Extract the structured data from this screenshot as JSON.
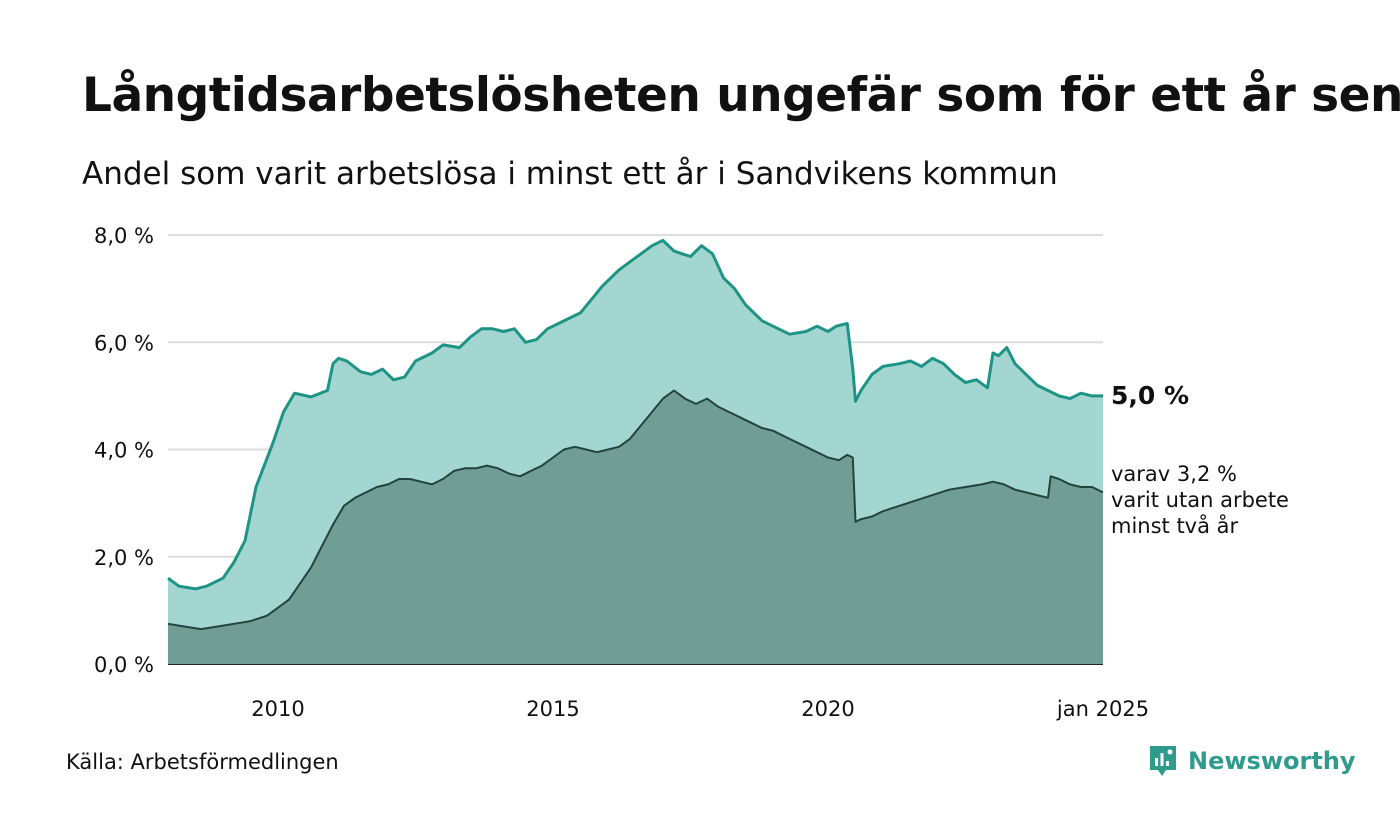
{
  "title": "Långtidsarbetslösheten ungefär som för ett år sen",
  "subtitle": "Andel som varit arbetslösa i minst ett år i Sandvikens kommun",
  "source": "Källa: Arbetsförmedlingen",
  "brand": "Newsworthy",
  "colors": {
    "series1_fill": "#a3d6d0",
    "series1_line": "#1d9485",
    "series2_fill": "#709e95",
    "series2_line": "#24433d",
    "grid": "#dddddd",
    "brand": "#2f9b8c"
  },
  "chart_data": {
    "type": "area",
    "x_unit": "year",
    "xlim": [
      2008.0,
      2025.0
    ],
    "ylim": [
      0,
      8
    ],
    "y_ticks": [
      0,
      2,
      4,
      6,
      8
    ],
    "y_tick_labels": [
      "0,0 %",
      "2,0 %",
      "4,0 %",
      "6,0 %",
      "8,0 %"
    ],
    "x_ticks": [
      2010,
      2015,
      2020,
      2025.0
    ],
    "x_tick_labels": [
      "2010",
      "2015",
      "2020",
      "jan 2025"
    ],
    "grid": true,
    "annotations": [
      "5,0 %",
      "varav 3,2 %",
      "varit utan arbete",
      "minst två år"
    ],
    "series": [
      {
        "x": [
          2008.0,
          2008.2,
          2008.5,
          2008.7,
          2009.0,
          2009.2,
          2009.4,
          2009.6,
          2009.9,
          2010.1,
          2010.3,
          2010.6,
          2010.9,
          2011.0,
          2011.1,
          2011.25,
          2011.5,
          2011.7,
          2011.9,
          2012.1,
          2012.3,
          2012.5,
          2012.8,
          2013.0,
          2013.3,
          2013.5,
          2013.7,
          2013.9,
          2014.1,
          2014.3,
          2014.5,
          2014.7,
          2014.9,
          2015.1,
          2015.3,
          2015.5,
          2015.7,
          2015.9,
          2016.2,
          2016.4,
          2016.6,
          2016.8,
          2017.0,
          2017.2,
          2017.35,
          2017.5,
          2017.7,
          2017.9,
          2018.1,
          2018.3,
          2018.5,
          2018.8,
          2019.0,
          2019.3,
          2019.6,
          2019.8,
          2020.0,
          2020.15,
          2020.35,
          2020.45,
          2020.5,
          2020.6,
          2020.8,
          2021.0,
          2021.3,
          2021.5,
          2021.7,
          2021.9,
          2022.1,
          2022.3,
          2022.5,
          2022.7,
          2022.9,
          2023.0,
          2023.1,
          2023.25,
          2023.4,
          2023.6,
          2023.8,
          2024.0,
          2024.2,
          2024.4,
          2024.6,
          2024.8,
          2025.0
        ],
        "values": [
          1.6,
          1.45,
          1.4,
          1.45,
          1.6,
          1.9,
          2.3,
          3.3,
          4.1,
          4.7,
          5.05,
          4.98,
          5.1,
          5.6,
          5.7,
          5.65,
          5.45,
          5.4,
          5.5,
          5.3,
          5.35,
          5.65,
          5.8,
          5.95,
          5.9,
          6.1,
          6.25,
          6.25,
          6.2,
          6.25,
          6.0,
          6.05,
          6.25,
          6.35,
          6.45,
          6.55,
          6.8,
          7.05,
          7.35,
          7.5,
          7.65,
          7.8,
          7.9,
          7.7,
          7.65,
          7.6,
          7.8,
          7.65,
          7.2,
          7.0,
          6.7,
          6.4,
          6.3,
          6.15,
          6.2,
          6.3,
          6.2,
          6.3,
          6.35,
          5.5,
          4.9,
          5.1,
          5.4,
          5.55,
          5.6,
          5.65,
          5.55,
          5.7,
          5.6,
          5.4,
          5.25,
          5.3,
          5.15,
          5.8,
          5.75,
          5.9,
          5.6,
          5.4,
          5.2,
          5.1,
          5.0,
          4.95,
          5.05,
          5.0,
          5.0
        ]
      },
      {
        "x": [
          2008.0,
          2008.3,
          2008.6,
          2008.9,
          2009.2,
          2009.5,
          2009.8,
          2010.0,
          2010.2,
          2010.4,
          2010.6,
          2010.8,
          2011.0,
          2011.2,
          2011.4,
          2011.6,
          2011.8,
          2012.0,
          2012.2,
          2012.4,
          2012.6,
          2012.8,
          2013.0,
          2013.2,
          2013.4,
          2013.6,
          2013.8,
          2014.0,
          2014.2,
          2014.4,
          2014.6,
          2014.8,
          2015.0,
          2015.2,
          2015.4,
          2015.6,
          2015.8,
          2016.0,
          2016.2,
          2016.4,
          2016.6,
          2016.8,
          2017.0,
          2017.2,
          2017.4,
          2017.6,
          2017.8,
          2018.0,
          2018.2,
          2018.4,
          2018.6,
          2018.8,
          2019.0,
          2019.2,
          2019.4,
          2019.6,
          2019.8,
          2020.0,
          2020.2,
          2020.35,
          2020.45,
          2020.5,
          2020.6,
          2020.8,
          2021.0,
          2021.3,
          2021.6,
          2021.9,
          2022.2,
          2022.5,
          2022.8,
          2023.0,
          2023.2,
          2023.4,
          2023.6,
          2023.8,
          2024.0,
          2024.05,
          2024.2,
          2024.4,
          2024.6,
          2024.8,
          2025.0
        ],
        "values": [
          0.75,
          0.7,
          0.65,
          0.7,
          0.75,
          0.8,
          0.9,
          1.05,
          1.2,
          1.5,
          1.8,
          2.2,
          2.6,
          2.95,
          3.1,
          3.2,
          3.3,
          3.35,
          3.45,
          3.45,
          3.4,
          3.35,
          3.45,
          3.6,
          3.65,
          3.65,
          3.7,
          3.65,
          3.55,
          3.5,
          3.6,
          3.7,
          3.85,
          4.0,
          4.05,
          4.0,
          3.95,
          4.0,
          4.05,
          4.2,
          4.45,
          4.7,
          4.95,
          5.1,
          4.95,
          4.85,
          4.95,
          4.8,
          4.7,
          4.6,
          4.5,
          4.4,
          4.35,
          4.25,
          4.15,
          4.05,
          3.95,
          3.85,
          3.8,
          3.9,
          3.85,
          2.65,
          2.7,
          2.75,
          2.85,
          2.95,
          3.05,
          3.15,
          3.25,
          3.3,
          3.35,
          3.4,
          3.35,
          3.25,
          3.2,
          3.15,
          3.1,
          3.5,
          3.45,
          3.35,
          3.3,
          3.3,
          3.2
        ]
      }
    ]
  }
}
